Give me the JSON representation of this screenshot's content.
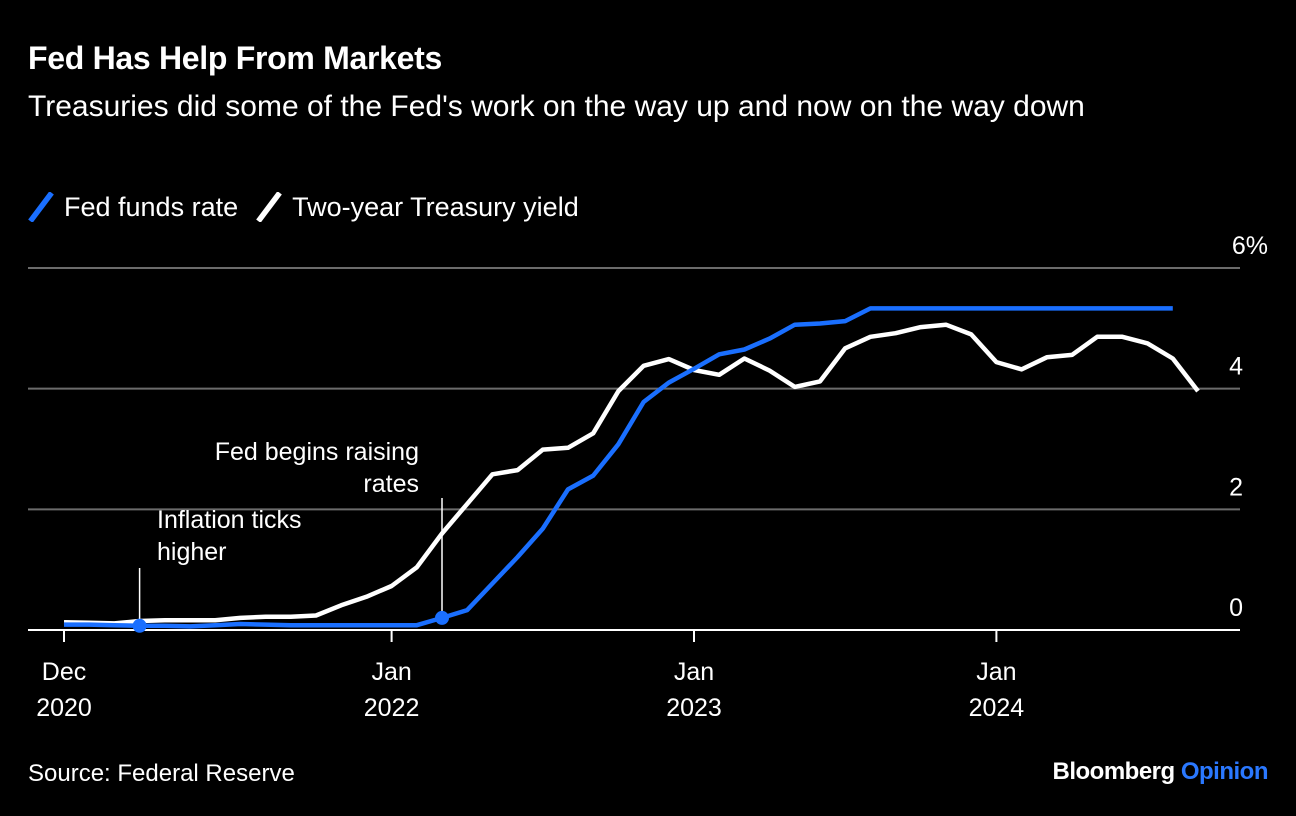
{
  "title": "Fed Has Help From Markets",
  "subtitle": "Treasuries did some of the Fed's work on the way up and now on the way down",
  "source": "Source: Federal Reserve",
  "brand": {
    "name": "Bloomberg",
    "accent": "Opinion"
  },
  "colors": {
    "background": "#000000",
    "fed_funds": "#1a6fff",
    "treasury": "#ffffff",
    "grid": "#6b6b6b",
    "brand_accent": "#2a78ff"
  },
  "chart_data": {
    "type": "line",
    "title": "Fed Has Help From Markets",
    "subtitle": "Treasuries did some of the Fed's work on the way up and now on the way down",
    "unit": "%",
    "ylim": [
      0,
      6
    ],
    "yticks": [
      {
        "value": 0,
        "label": "0"
      },
      {
        "value": 2,
        "label": "2"
      },
      {
        "value": 4,
        "label": "4"
      },
      {
        "value": 6,
        "label": "6%"
      }
    ],
    "xlim": [
      "2020-12",
      "2024-08"
    ],
    "xticks": [
      {
        "date": "2020-12",
        "line1": "Dec",
        "line2": "2020"
      },
      {
        "date": "2022-01",
        "line1": "Jan",
        "line2": "2022"
      },
      {
        "date": "2023-01",
        "line1": "Jan",
        "line2": "2023"
      },
      {
        "date": "2024-01",
        "line1": "Jan",
        "line2": "2024"
      }
    ],
    "grid": true,
    "legend_position": "top-left",
    "series": [
      {
        "name": "Fed funds rate",
        "key": "fed_funds",
        "color": "#1a6fff",
        "points": [
          [
            "2020-12",
            0.09
          ],
          [
            "2021-01",
            0.09
          ],
          [
            "2021-02",
            0.08
          ],
          [
            "2021-03",
            0.07
          ],
          [
            "2021-04",
            0.07
          ],
          [
            "2021-05",
            0.06
          ],
          [
            "2021-06",
            0.08
          ],
          [
            "2021-07",
            0.1
          ],
          [
            "2021-08",
            0.09
          ],
          [
            "2021-09",
            0.08
          ],
          [
            "2021-10",
            0.08
          ],
          [
            "2021-11",
            0.08
          ],
          [
            "2021-12",
            0.08
          ],
          [
            "2022-01",
            0.08
          ],
          [
            "2022-02",
            0.08
          ],
          [
            "2022-03",
            0.2
          ],
          [
            "2022-04",
            0.33
          ],
          [
            "2022-05",
            0.77
          ],
          [
            "2022-06",
            1.21
          ],
          [
            "2022-07",
            1.68
          ],
          [
            "2022-08",
            2.33
          ],
          [
            "2022-09",
            2.56
          ],
          [
            "2022-10",
            3.08
          ],
          [
            "2022-11",
            3.78
          ],
          [
            "2022-12",
            4.1
          ],
          [
            "2023-01",
            4.33
          ],
          [
            "2023-02",
            4.57
          ],
          [
            "2023-03",
            4.65
          ],
          [
            "2023-04",
            4.83
          ],
          [
            "2023-05",
            5.06
          ],
          [
            "2023-06",
            5.08
          ],
          [
            "2023-07",
            5.12
          ],
          [
            "2023-08",
            5.33
          ],
          [
            "2023-09",
            5.33
          ],
          [
            "2023-10",
            5.33
          ],
          [
            "2023-11",
            5.33
          ],
          [
            "2023-12",
            5.33
          ],
          [
            "2024-01",
            5.33
          ],
          [
            "2024-02",
            5.33
          ],
          [
            "2024-03",
            5.33
          ],
          [
            "2024-04",
            5.33
          ],
          [
            "2024-05",
            5.33
          ],
          [
            "2024-06",
            5.33
          ],
          [
            "2024-07",
            5.33
          ],
          [
            "2024-08",
            5.33
          ]
        ]
      },
      {
        "name": "Two-year Treasury yield",
        "key": "treasury",
        "color": "#ffffff",
        "points": [
          [
            "2020-12",
            0.13
          ],
          [
            "2021-01",
            0.12
          ],
          [
            "2021-02",
            0.11
          ],
          [
            "2021-03",
            0.15
          ],
          [
            "2021-04",
            0.16
          ],
          [
            "2021-05",
            0.16
          ],
          [
            "2021-06",
            0.16
          ],
          [
            "2021-07",
            0.2
          ],
          [
            "2021-08",
            0.22
          ],
          [
            "2021-09",
            0.22
          ],
          [
            "2021-10",
            0.24
          ],
          [
            "2021-11",
            0.41
          ],
          [
            "2021-12",
            0.55
          ],
          [
            "2022-01",
            0.73
          ],
          [
            "2022-02",
            1.04
          ],
          [
            "2022-03",
            1.6
          ],
          [
            "2022-04",
            2.09
          ],
          [
            "2022-05",
            2.58
          ],
          [
            "2022-06",
            2.65
          ],
          [
            "2022-07",
            2.99
          ],
          [
            "2022-08",
            3.02
          ],
          [
            "2022-09",
            3.26
          ],
          [
            "2022-10",
            3.96
          ],
          [
            "2022-11",
            4.38
          ],
          [
            "2022-12",
            4.49
          ],
          [
            "2023-01",
            4.31
          ],
          [
            "2023-02",
            4.23
          ],
          [
            "2023-03",
            4.5
          ],
          [
            "2023-04",
            4.3
          ],
          [
            "2023-05",
            4.03
          ],
          [
            "2023-06",
            4.12
          ],
          [
            "2023-07",
            4.67
          ],
          [
            "2023-08",
            4.86
          ],
          [
            "2023-09",
            4.92
          ],
          [
            "2023-10",
            5.02
          ],
          [
            "2023-11",
            5.06
          ],
          [
            "2023-12",
            4.9
          ],
          [
            "2024-01",
            4.44
          ],
          [
            "2024-02",
            4.32
          ],
          [
            "2024-03",
            4.52
          ],
          [
            "2024-04",
            4.56
          ],
          [
            "2024-05",
            4.86
          ],
          [
            "2024-06",
            4.86
          ],
          [
            "2024-07",
            4.75
          ],
          [
            "2024-08",
            4.5
          ],
          [
            "2024-09",
            3.96
          ]
        ]
      }
    ],
    "annotations": [
      {
        "text_lines": [
          "Inflation ticks",
          "higher"
        ],
        "date": "2021-03",
        "value": 0.07
      },
      {
        "text_lines": [
          "Fed begins raising",
          "rates"
        ],
        "date": "2022-03",
        "value": 0.2
      }
    ]
  }
}
